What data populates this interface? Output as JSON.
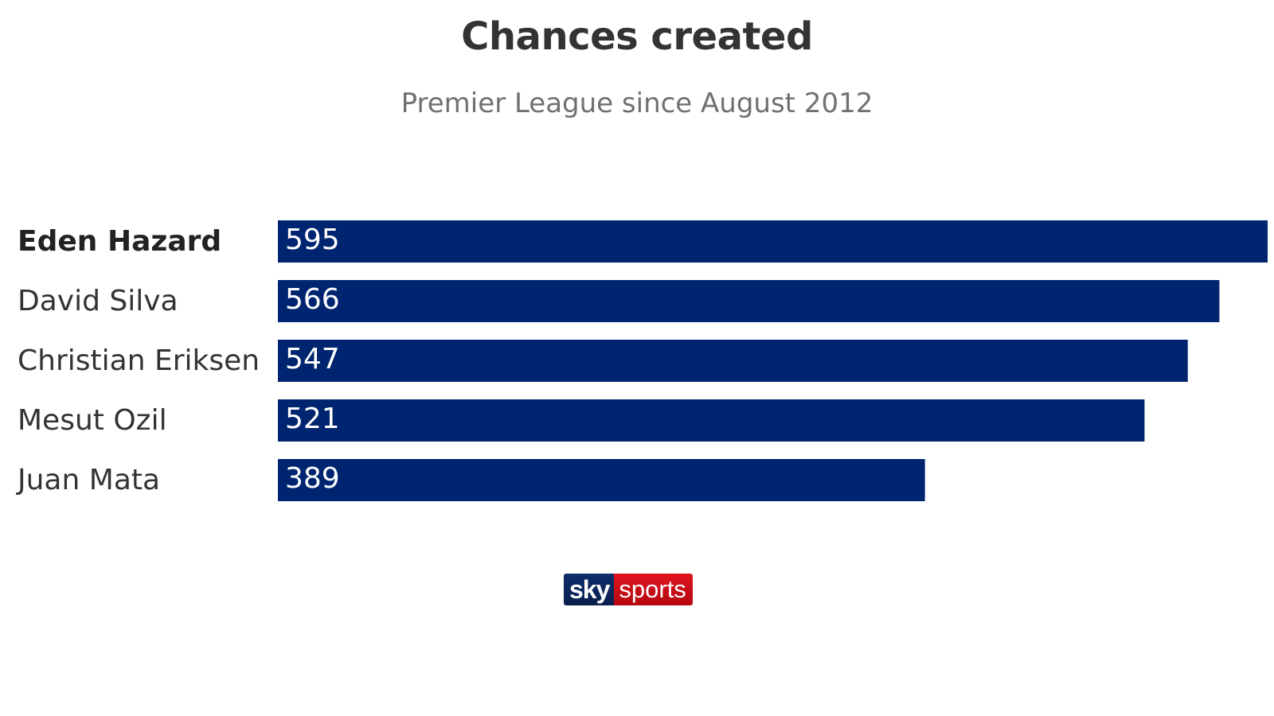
{
  "chart_data": {
    "type": "bar",
    "orientation": "horizontal",
    "title": "Chances created",
    "subtitle": "Premier League since August 2012",
    "categories": [
      "Eden Hazard",
      "David Silva",
      "Christian Eriksen",
      "Mesut Ozil",
      "Juan Mata"
    ],
    "values": [
      595,
      566,
      547,
      521,
      389
    ],
    "highlight": "Eden Hazard",
    "xlim": [
      0,
      595
    ],
    "grid": false,
    "legend": "none",
    "bar_color": "#002570"
  },
  "branding": {
    "logo_part1": "sky",
    "logo_part2": "sports",
    "colors": {
      "sky": "#0a1f4d",
      "sports": "#d0101a"
    }
  }
}
